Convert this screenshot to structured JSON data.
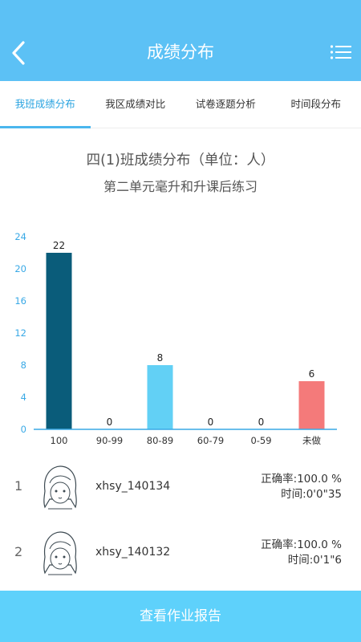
{
  "header": {
    "title": "成绩分布"
  },
  "tabs": [
    {
      "label": "我班成绩分布",
      "active": true
    },
    {
      "label": "我区成绩对比",
      "active": false
    },
    {
      "label": "试卷逐题分析",
      "active": false
    },
    {
      "label": "时间段分布",
      "active": false
    }
  ],
  "chart": {
    "title": "四(1)班成绩分布（单位：人）",
    "subtitle": "第二单元毫升和升课后练习"
  },
  "chart_data": {
    "type": "bar",
    "title": "四(1)班成绩分布（单位：人）",
    "subtitle": "第二单元毫升和升课后练习",
    "categories": [
      "100",
      "90-99",
      "80-89",
      "60-79",
      "0-59",
      "未做"
    ],
    "values": [
      22,
      0,
      8,
      0,
      0,
      6
    ],
    "data_labels": [
      "22",
      "0",
      "8",
      "0",
      "0",
      "6"
    ],
    "bar_colors": [
      "#0a5c7a",
      "#0a5c7a",
      "#62d0f5",
      "#62d0f5",
      "#62d0f5",
      "#f47a7a"
    ],
    "ylim": [
      0,
      24
    ],
    "yticks": [
      "0",
      "4",
      "8",
      "12",
      "16",
      "20",
      "24"
    ],
    "ytick_color": "#39a9e6",
    "axis_color": "#39a9e6",
    "grid": false,
    "legend": false,
    "xlabel": "",
    "ylabel": ""
  },
  "students": [
    {
      "rank": "1",
      "name": "xhsy_140134",
      "accuracy": "正确率:100.0 %",
      "time": "时间:0'0\"35"
    },
    {
      "rank": "2",
      "name": "xhsy_140132",
      "accuracy": "正确率:100.0 %",
      "time": "时间:0'1\"6"
    }
  ],
  "footer": {
    "button_label": "查看作业报告"
  },
  "colors": {
    "header_bg": "#5cc1f5",
    "tab_active": "#29a3e0",
    "footer_bg": "#5ed1fb"
  },
  "icons": {
    "back": "back-arrow-icon",
    "menu": "list-menu-icon",
    "avatar": "avatar-girl-icon"
  }
}
